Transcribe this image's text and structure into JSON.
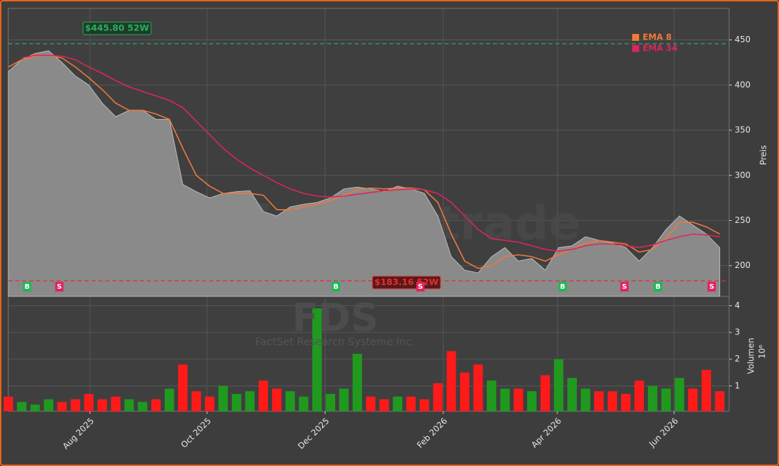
{
  "chart_data": [
    {
      "type": "line",
      "watermark": "forexsignale.trade",
      "ylabel": "Preis",
      "x": [
        0,
        1,
        2,
        3,
        4,
        5,
        6,
        7,
        8,
        9,
        10,
        11,
        12,
        13,
        14,
        15,
        16,
        17,
        18,
        19,
        20,
        21,
        22,
        23,
        24,
        25,
        26,
        27,
        28,
        29,
        30,
        31,
        32,
        33,
        34,
        35,
        36,
        37,
        38,
        39,
        40,
        41,
        42,
        43,
        44,
        45,
        46,
        47,
        48,
        49,
        50,
        51,
        52,
        53
      ],
      "values": [
        415,
        428,
        435,
        438,
        425,
        410,
        400,
        380,
        365,
        372,
        372,
        362,
        362,
        290,
        282,
        275,
        280,
        282,
        283,
        260,
        255,
        265,
        268,
        270,
        275,
        285,
        287,
        285,
        282,
        288,
        285,
        280,
        255,
        210,
        195,
        192,
        210,
        220,
        205,
        208,
        195,
        220,
        222,
        232,
        228,
        225,
        220,
        205,
        220,
        240,
        255,
        245,
        235,
        220
      ],
      "color": "#8a8a8a",
      "series": [
        {
          "name": "EMA 8",
          "color": "#f0793a",
          "values": [
            420,
            428,
            432,
            433,
            430,
            420,
            408,
            395,
            380,
            372,
            372,
            368,
            362,
            330,
            300,
            288,
            280,
            280,
            280,
            278,
            262,
            262,
            265,
            268,
            272,
            278,
            284,
            286,
            285,
            286,
            286,
            284,
            270,
            235,
            205,
            197,
            200,
            210,
            212,
            210,
            205,
            212,
            218,
            225,
            228,
            226,
            224,
            215,
            218,
            230,
            248,
            248,
            243,
            235
          ]
        },
        {
          "name": "EMA 34",
          "color": "#e0245e",
          "values": [
            null,
            430,
            433,
            433,
            432,
            428,
            420,
            413,
            405,
            398,
            393,
            388,
            383,
            375,
            360,
            345,
            330,
            318,
            308,
            300,
            292,
            285,
            280,
            277,
            276,
            277,
            279,
            281,
            283,
            284,
            285,
            284,
            280,
            270,
            255,
            240,
            230,
            228,
            226,
            222,
            218,
            216,
            218,
            222,
            224,
            224,
            222,
            220,
            223,
            228,
            232,
            235,
            234,
            232
          ]
        }
      ],
      "annotations": [
        {
          "value": 445.8,
          "label": "$445.80 52W",
          "color": "#27ae60"
        },
        {
          "value": 183.16,
          "label": "$183.16 52W",
          "color": "#e03030"
        }
      ],
      "signals": [
        {
          "x": 1.4,
          "label": "B",
          "color": "#1db954"
        },
        {
          "x": 3.8,
          "label": "S",
          "color": "#e0245e"
        },
        {
          "x": 24.4,
          "label": "B",
          "color": "#1db954"
        },
        {
          "x": 30.7,
          "label": "S",
          "color": "#e0245e"
        },
        {
          "x": 41.3,
          "label": "B",
          "color": "#1db954"
        },
        {
          "x": 45.9,
          "label": "S",
          "color": "#e0245e"
        },
        {
          "x": 48.4,
          "label": "B",
          "color": "#1db954"
        },
        {
          "x": 52.4,
          "label": "S",
          "color": "#e0245e"
        }
      ],
      "xlim": [
        0,
        53.7
      ],
      "ylim": [
        166,
        485
      ],
      "yticks": [
        200,
        250,
        300,
        350,
        400,
        450
      ],
      "grid": true,
      "legend": "top-right"
    },
    {
      "type": "bar",
      "watermark": "FDS",
      "subtitle": "FactSet Research Systeme Inc.",
      "ylabel": "Volumen",
      "ylabel_unit": "10⁶",
      "x": [
        0,
        1,
        2,
        3,
        4,
        5,
        6,
        7,
        8,
        9,
        10,
        11,
        12,
        13,
        14,
        15,
        16,
        17,
        18,
        19,
        20,
        21,
        22,
        23,
        24,
        25,
        26,
        27,
        28,
        29,
        30,
        31,
        32,
        33,
        34,
        35,
        36,
        37,
        38,
        39,
        40,
        41,
        42,
        43,
        44,
        45,
        46,
        47,
        48,
        49,
        50,
        51,
        52,
        53
      ],
      "values": [
        0.6,
        0.4,
        0.3,
        0.5,
        0.4,
        0.5,
        0.7,
        0.5,
        0.6,
        0.5,
        0.4,
        0.5,
        0.9,
        1.8,
        0.8,
        0.6,
        1.0,
        0.7,
        0.8,
        1.2,
        0.9,
        0.8,
        0.6,
        3.9,
        0.7,
        0.9,
        2.2,
        0.6,
        0.5,
        0.6,
        0.6,
        0.5,
        1.1,
        2.3,
        1.5,
        1.8,
        1.2,
        0.9,
        0.9,
        0.8,
        1.4,
        2.0,
        1.3,
        0.9,
        0.8,
        0.8,
        0.7,
        1.2,
        1.0,
        0.9,
        1.3,
        0.9,
        1.6,
        0.8
      ],
      "up_color": "#1f9a1f",
      "down_color": "#ff1a1a",
      "xlim": [
        0,
        53.7
      ],
      "ylim": [
        0.05,
        4.35
      ],
      "yticks": [
        1,
        2,
        3,
        4
      ],
      "xticks": [
        {
          "value": 6.08,
          "label": "Aug 2025"
        },
        {
          "value": 14.8,
          "label": "Oct 2025"
        },
        {
          "value": 23.6,
          "label": "Dec 2025"
        },
        {
          "value": 32.4,
          "label": "Feb 2026"
        },
        {
          "value": 40.9,
          "label": "Apr 2026"
        },
        {
          "value": 49.6,
          "label": "Jun 2026"
        }
      ],
      "grid": true
    }
  ]
}
